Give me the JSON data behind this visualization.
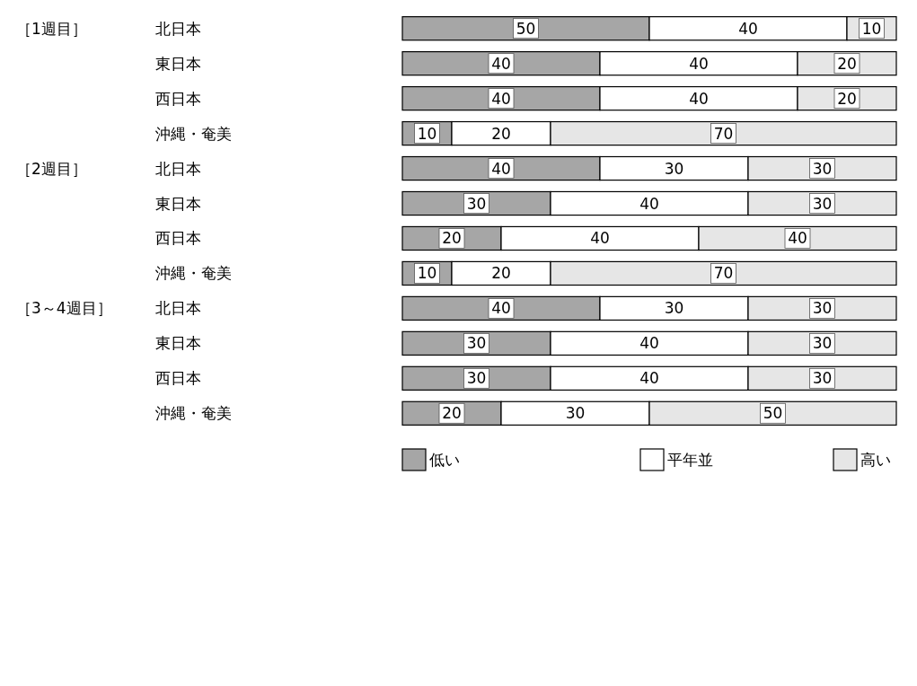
{
  "chart_data": {
    "type": "bar",
    "orientation": "horizontal",
    "stacked": true,
    "categories": [
      "北日本",
      "東日本",
      "西日本",
      "沖縄・奄美",
      "北日本",
      "東日本",
      "西日本",
      "沖縄・奄美",
      "北日本",
      "東日本",
      "西日本",
      "沖縄・奄美"
    ],
    "series": [
      {
        "name": "低い",
        "color": "#a6a6a6",
        "values": [
          50,
          40,
          40,
          10,
          40,
          30,
          20,
          10,
          40,
          30,
          30,
          20
        ]
      },
      {
        "name": "平年並",
        "color": "#ffffff",
        "values": [
          40,
          40,
          40,
          20,
          30,
          40,
          40,
          20,
          30,
          40,
          40,
          30
        ]
      },
      {
        "name": "高い",
        "color": "#e6e6e6",
        "values": [
          10,
          20,
          20,
          70,
          30,
          30,
          40,
          70,
          30,
          30,
          30,
          50
        ]
      }
    ],
    "xlim": [
      0,
      100
    ],
    "tick_labels": "y",
    "data_labels": true,
    "legend": "bottom",
    "annotations": [
      "［1週目］",
      "［2週目］",
      "［3～4週目］"
    ]
  }
}
